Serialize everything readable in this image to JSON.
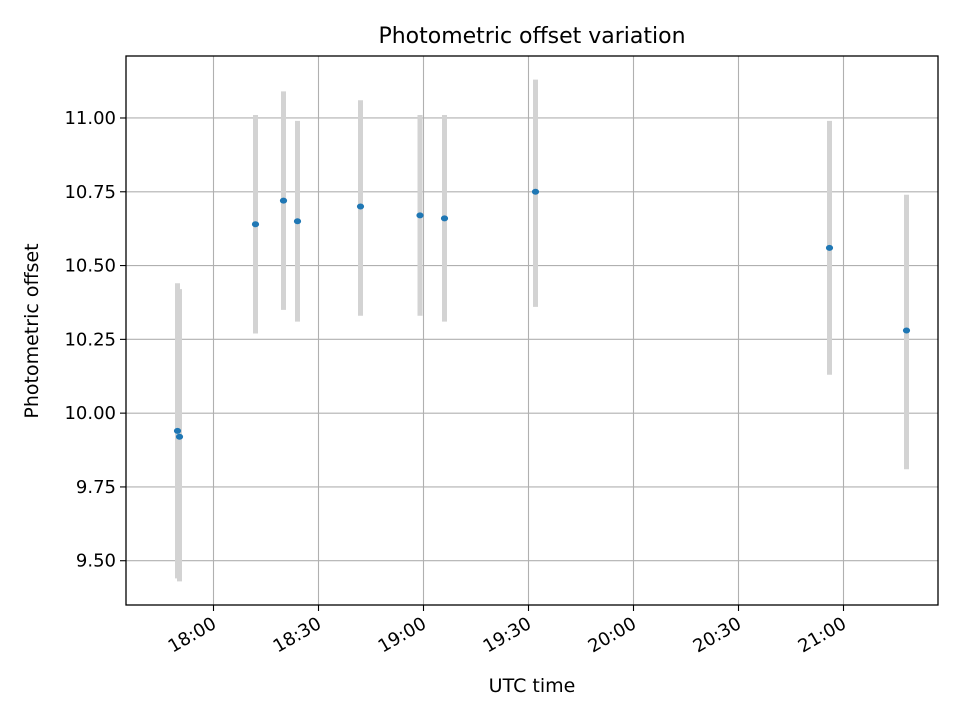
{
  "chart_data": {
    "type": "scatter",
    "title": "Photometric offset variation",
    "xlabel": "UTC time",
    "ylabel": "Photometric offset",
    "x_axis_type": "time",
    "xlim": [
      "17:35",
      "21:27"
    ],
    "ylim": [
      9.35,
      11.21
    ],
    "x_ticks": [
      "18:00",
      "18:30",
      "19:00",
      "19:30",
      "20:00",
      "20:30",
      "21:00"
    ],
    "y_ticks": [
      9.5,
      9.75,
      10.0,
      10.25,
      10.5,
      10.75,
      11.0
    ],
    "y_tick_labels": [
      "9.50",
      "9.75",
      "10.00",
      "10.25",
      "10.50",
      "10.75",
      "11.00"
    ],
    "grid": true,
    "marker_color": "#1f77b4",
    "errorbar_color": "#d3d3d3",
    "points": [
      {
        "time": "17:50",
        "y": 9.94,
        "yerr_low": 9.44,
        "yerr_high": 10.44
      },
      {
        "time": "17:50",
        "y": 9.92,
        "yerr_low": 9.43,
        "yerr_high": 10.42
      },
      {
        "time": "18:12",
        "y": 10.64,
        "yerr_low": 10.27,
        "yerr_high": 11.01
      },
      {
        "time": "18:20",
        "y": 10.72,
        "yerr_low": 10.35,
        "yerr_high": 11.09
      },
      {
        "time": "18:24",
        "y": 10.65,
        "yerr_low": 10.31,
        "yerr_high": 10.99
      },
      {
        "time": "18:42",
        "y": 10.7,
        "yerr_low": 10.33,
        "yerr_high": 11.06
      },
      {
        "time": "18:59",
        "y": 10.67,
        "yerr_low": 10.33,
        "yerr_high": 11.01
      },
      {
        "time": "19:06",
        "y": 10.66,
        "yerr_low": 10.31,
        "yerr_high": 11.01
      },
      {
        "time": "19:32",
        "y": 10.75,
        "yerr_low": 10.36,
        "yerr_high": 11.13
      },
      {
        "time": "20:56",
        "y": 10.56,
        "yerr_low": 10.13,
        "yerr_high": 10.99
      },
      {
        "time": "21:18",
        "y": 10.28,
        "yerr_low": 9.81,
        "yerr_high": 10.74
      }
    ]
  }
}
